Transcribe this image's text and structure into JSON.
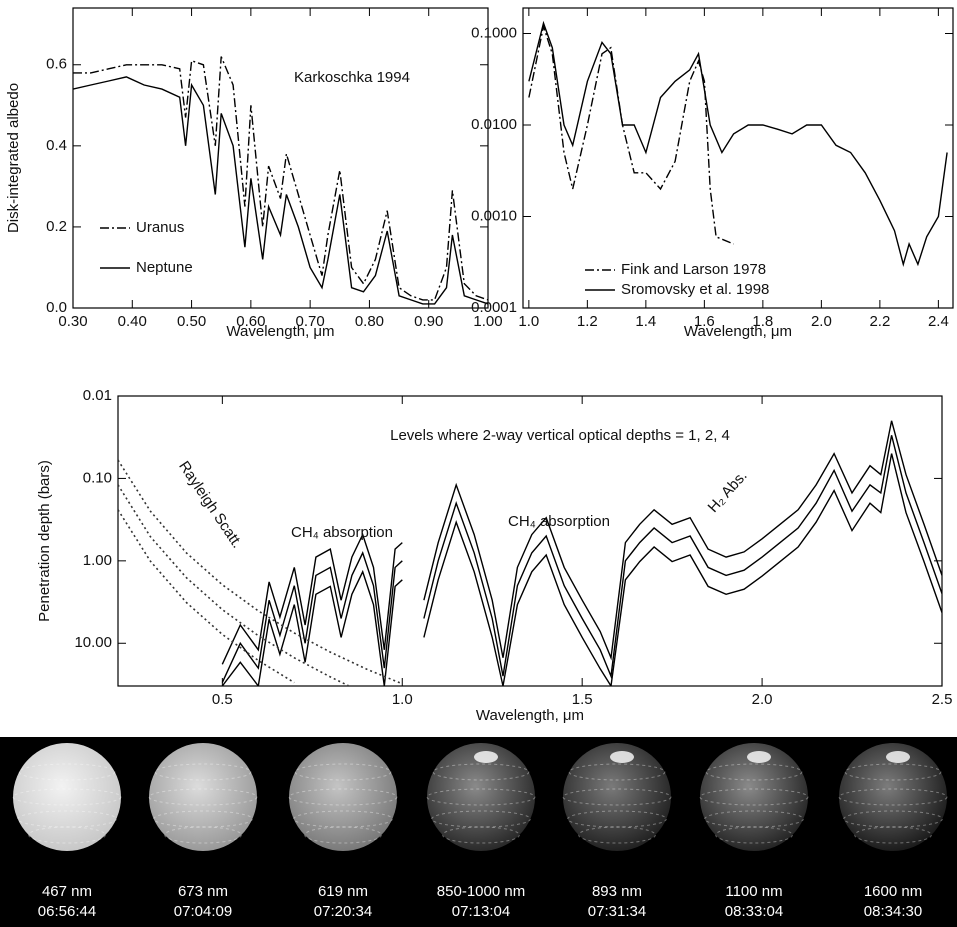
{
  "chart_data": [
    {
      "type": "line",
      "annotations": [
        "Karkoschka 1994"
      ],
      "x_label": "Wavelength, μm",
      "y_label": "Disk-integrated albedo",
      "xlim": [
        0.3,
        1.0
      ],
      "ylim": [
        0,
        0.74
      ],
      "xticks": [
        {
          "value": 0.3,
          "label": "0.30"
        },
        {
          "value": 0.4,
          "label": "0.40"
        },
        {
          "value": 0.5,
          "label": "0.50"
        },
        {
          "value": 0.6,
          "label": "0.60"
        },
        {
          "value": 0.7,
          "label": "0.70"
        },
        {
          "value": 0.8,
          "label": "0.80"
        },
        {
          "value": 0.9,
          "label": "0.90"
        },
        {
          "value": 1,
          "label": "1.00"
        }
      ],
      "yticks": [
        {
          "value": 0,
          "label": "0.0"
        },
        0.2,
        0.4,
        0.6
      ],
      "log_y": false,
      "x": [
        0.3,
        0.33,
        0.36,
        0.39,
        0.42,
        0.45,
        0.48,
        0.49,
        0.5,
        0.52,
        0.54,
        0.55,
        0.57,
        0.59,
        0.6,
        0.62,
        0.63,
        0.65,
        0.66,
        0.68,
        0.7,
        0.72,
        0.73,
        0.75,
        0.77,
        0.79,
        0.81,
        0.83,
        0.85,
        0.87,
        0.89,
        0.91,
        0.93,
        0.94,
        0.96,
        0.98,
        1.0
      ],
      "series": [
        {
          "name": "Uranus",
          "color": "#000000",
          "dash": "dash-dot",
          "values": [
            0.58,
            0.58,
            0.59,
            0.6,
            0.6,
            0.6,
            0.59,
            0.47,
            0.61,
            0.6,
            0.4,
            0.62,
            0.55,
            0.25,
            0.5,
            0.2,
            0.35,
            0.27,
            0.38,
            0.28,
            0.18,
            0.08,
            0.18,
            0.34,
            0.1,
            0.06,
            0.12,
            0.24,
            0.05,
            0.03,
            0.02,
            0.02,
            0.1,
            0.29,
            0.06,
            0.03,
            0.02
          ]
        },
        {
          "name": "Neptune",
          "color": "#000000",
          "dash": "solid",
          "values": [
            0.54,
            0.55,
            0.56,
            0.57,
            0.55,
            0.54,
            0.52,
            0.4,
            0.55,
            0.5,
            0.28,
            0.48,
            0.4,
            0.15,
            0.32,
            0.12,
            0.25,
            0.18,
            0.28,
            0.2,
            0.1,
            0.05,
            0.12,
            0.28,
            0.05,
            0.04,
            0.08,
            0.19,
            0.03,
            0.02,
            0.01,
            0.01,
            0.05,
            0.18,
            0.03,
            0.02,
            0.01
          ]
        }
      ]
    },
    {
      "type": "line",
      "annotations": [],
      "x_label": "Wavelength, μm",
      "xlim": [
        0.98,
        2.45
      ],
      "ylim": [
        0.0001,
        0.19
      ],
      "log_y": true,
      "xticks": [
        {
          "value": 1,
          "label": "1.0"
        },
        1.2,
        1.4,
        1.6,
        1.8,
        {
          "value": 2,
          "label": "2.0"
        },
        2.2,
        2.4
      ],
      "yticks": [
        0.0001,
        {
          "value": 0.001,
          "label": "0.0010"
        },
        {
          "value": 0.01,
          "label": "0.0100"
        },
        {
          "value": 0.1,
          "label": "0.1000"
        }
      ],
      "series": [
        {
          "name": "Fink and Larson 1978",
          "color": "#000000",
          "dash": "dash-dot",
          "x": [
            1.0,
            1.05,
            1.08,
            1.12,
            1.15,
            1.2,
            1.25,
            1.28,
            1.32,
            1.36,
            1.4,
            1.45,
            1.5,
            1.55,
            1.58,
            1.6,
            1.62,
            1.64,
            1.7
          ],
          "values": [
            0.02,
            0.12,
            0.06,
            0.005,
            0.002,
            0.01,
            0.06,
            0.07,
            0.01,
            0.003,
            0.003,
            0.002,
            0.004,
            0.03,
            0.05,
            0.03,
            0.002,
            0.0006,
            0.0005
          ]
        },
        {
          "name": "Sromovsky et al. 1998",
          "color": "#000000",
          "dash": "solid",
          "x": [
            1.0,
            1.05,
            1.08,
            1.12,
            1.15,
            1.2,
            1.25,
            1.28,
            1.32,
            1.36,
            1.4,
            1.45,
            1.5,
            1.55,
            1.58,
            1.62,
            1.66,
            1.7,
            1.75,
            1.8,
            1.85,
            1.9,
            1.95,
            2.0,
            2.05,
            2.1,
            2.15,
            2.2,
            2.25,
            2.28,
            2.3,
            2.33,
            2.36,
            2.4,
            2.43
          ],
          "values": [
            0.03,
            0.13,
            0.07,
            0.01,
            0.006,
            0.03,
            0.08,
            0.06,
            0.01,
            0.01,
            0.005,
            0.02,
            0.03,
            0.04,
            0.06,
            0.01,
            0.005,
            0.008,
            0.01,
            0.01,
            0.009,
            0.008,
            0.01,
            0.01,
            0.006,
            0.005,
            0.003,
            0.0015,
            0.0007,
            0.0003,
            0.0005,
            0.0003,
            0.0006,
            0.001,
            0.005
          ]
        }
      ]
    },
    {
      "type": "line",
      "annotations": [
        "Levels where 2-way vertical optical depths = 1, 2, 4",
        "Rayleigh Scatt.",
        "CH₄ absorption",
        "CH₄ absorption",
        "H₂ Abs."
      ],
      "x_label": "Wavelength, μm",
      "y_label": "Penetration depth (bars)",
      "xlim": [
        0.21,
        2.5
      ],
      "ylim": [
        33,
        0.01
      ],
      "log_y": true,
      "xticks": [
        0.5,
        {
          "value": 1,
          "label": "1.0"
        },
        1.5,
        {
          "value": 2,
          "label": "2.0"
        },
        2.5
      ],
      "yticks": [
        0.01,
        {
          "value": 0.1,
          "label": "0.10"
        },
        {
          "value": 1,
          "label": "1.00"
        },
        {
          "value": 10,
          "label": "10.00"
        }
      ],
      "series": [
        {
          "color": "#000000",
          "dash": "solid",
          "x": [
            0.5,
            0.55,
            0.6,
            0.63,
            0.66,
            0.7,
            0.73,
            0.76,
            0.8,
            0.83,
            0.86,
            0.89,
            0.92,
            0.95,
            0.98,
            1.0,
            1.03,
            1.06,
            1.1,
            1.15,
            1.2,
            1.25,
            1.28,
            1.32,
            1.36,
            1.4,
            1.45,
            1.5,
            1.55,
            1.58,
            1.62,
            1.66,
            1.7,
            1.75,
            1.8,
            1.85,
            1.9,
            1.95,
            2.0,
            2.05,
            2.1,
            2.15,
            2.2,
            2.25,
            2.3,
            2.33,
            2.36,
            2.4,
            2.45,
            2.5
          ],
          "values": [
            18,
            6,
            12,
            1.8,
            4.8,
            1.2,
            6,
            0.9,
            0.72,
            3,
            0.9,
            0.48,
            1.2,
            12,
            0.72,
            0.6,
            null,
            3,
            0.6,
            0.12,
            0.48,
            3,
            15,
            1.2,
            0.48,
            0.3,
            1.2,
            3,
            7.2,
            15,
            0.6,
            0.36,
            0.24,
            0.36,
            0.3,
            0.72,
            0.9,
            0.78,
            0.54,
            0.36,
            0.24,
            0.12,
            0.05,
            0.15,
            0.07,
            0.09,
            0.02,
            0.09,
            0.36,
            1.5
          ]
        },
        {
          "color": "#000000",
          "dash": "solid",
          "x": [
            0.5,
            0.55,
            0.6,
            0.63,
            0.66,
            0.7,
            0.73,
            0.76,
            0.8,
            0.83,
            0.86,
            0.89,
            0.92,
            0.95,
            0.98,
            1.0,
            1.03,
            1.06,
            1.1,
            1.15,
            1.2,
            1.25,
            1.28,
            1.32,
            1.36,
            1.4,
            1.45,
            1.5,
            1.55,
            1.58,
            1.62,
            1.66,
            1.7,
            1.75,
            1.8,
            1.85,
            1.9,
            1.95,
            2.0,
            2.05,
            2.1,
            2.15,
            2.2,
            2.25,
            2.3,
            2.33,
            2.36,
            2.4,
            2.45,
            2.5
          ],
          "values": [
            30,
            10,
            20,
            3,
            8,
            2,
            10,
            1.5,
            1.2,
            5,
            1.5,
            0.8,
            2,
            20,
            1.2,
            1.0,
            null,
            5,
            1.0,
            0.2,
            0.8,
            5,
            25,
            2,
            0.8,
            0.5,
            2,
            5,
            12,
            25,
            1.0,
            0.6,
            0.4,
            0.6,
            0.5,
            1.2,
            1.5,
            1.3,
            0.9,
            0.6,
            0.4,
            0.2,
            0.08,
            0.25,
            0.12,
            0.15,
            0.03,
            0.15,
            0.6,
            2.5
          ]
        },
        {
          "color": "#000000",
          "dash": "solid",
          "x": [
            0.5,
            0.55,
            0.6,
            0.63,
            0.66,
            0.7,
            0.73,
            0.76,
            0.8,
            0.83,
            0.86,
            0.89,
            0.92,
            0.95,
            0.98,
            1.0,
            1.03,
            1.06,
            1.1,
            1.15,
            1.2,
            1.25,
            1.28,
            1.32,
            1.36,
            1.4,
            1.45,
            1.5,
            1.55,
            1.58,
            1.62,
            1.66,
            1.7,
            1.75,
            1.8,
            1.85,
            1.9,
            1.95,
            2.0,
            2.05,
            2.1,
            2.15,
            2.2,
            2.25,
            2.3,
            2.33,
            2.36,
            2.4,
            2.45,
            2.5
          ],
          "values": [
            33,
            17,
            33,
            5.1,
            13.6,
            3.4,
            17,
            2.55,
            2.04,
            8.5,
            2.55,
            1.36,
            3.4,
            33,
            2.04,
            1.7,
            null,
            8.5,
            1.7,
            0.34,
            1.36,
            8.5,
            33,
            3.4,
            1.36,
            0.85,
            3.4,
            8.5,
            20.4,
            33,
            1.7,
            1.02,
            0.68,
            1.02,
            0.85,
            2.04,
            2.55,
            2.21,
            1.53,
            1.02,
            0.68,
            0.34,
            0.14,
            0.43,
            0.2,
            0.26,
            0.05,
            0.26,
            1.02,
            4.25
          ]
        },
        {
          "color": "#333333",
          "dash": "dotted",
          "x": [
            0.21,
            0.3,
            0.4,
            0.5,
            0.6,
            0.7,
            0.8,
            0.9,
            1.0
          ],
          "values": [
            0.06,
            0.25,
            0.8,
            1.95,
            4.05,
            7.5,
            12.8,
            20.5,
            31
          ]
        },
        {
          "color": "#333333",
          "dash": "dotted",
          "x": [
            0.21,
            0.3,
            0.4,
            0.5,
            0.6,
            0.7,
            0.8,
            0.85
          ],
          "values": [
            0.12,
            0.51,
            1.6,
            3.9,
            8.1,
            15,
            25.6,
            32.6
          ]
        },
        {
          "color": "#333333",
          "dash": "dotted",
          "x": [
            0.21,
            0.3,
            0.4,
            0.5,
            0.6,
            0.7
          ],
          "values": [
            0.24,
            1.01,
            3.2,
            7.8,
            16.2,
            30
          ]
        }
      ]
    }
  ],
  "panels": [
    {
      "wavelength": "467 nm",
      "time": "06:56:44"
    },
    {
      "wavelength": "673 nm",
      "time": "07:04:09"
    },
    {
      "wavelength": "619 nm",
      "time": "07:20:34"
    },
    {
      "wavelength": "850-1000 nm",
      "time": "07:13:04"
    },
    {
      "wavelength": "893 nm",
      "time": "07:31:34"
    },
    {
      "wavelength": "1100 nm",
      "time": "08:33:04"
    },
    {
      "wavelength": "1600 nm",
      "time": "08:34:30"
    }
  ]
}
